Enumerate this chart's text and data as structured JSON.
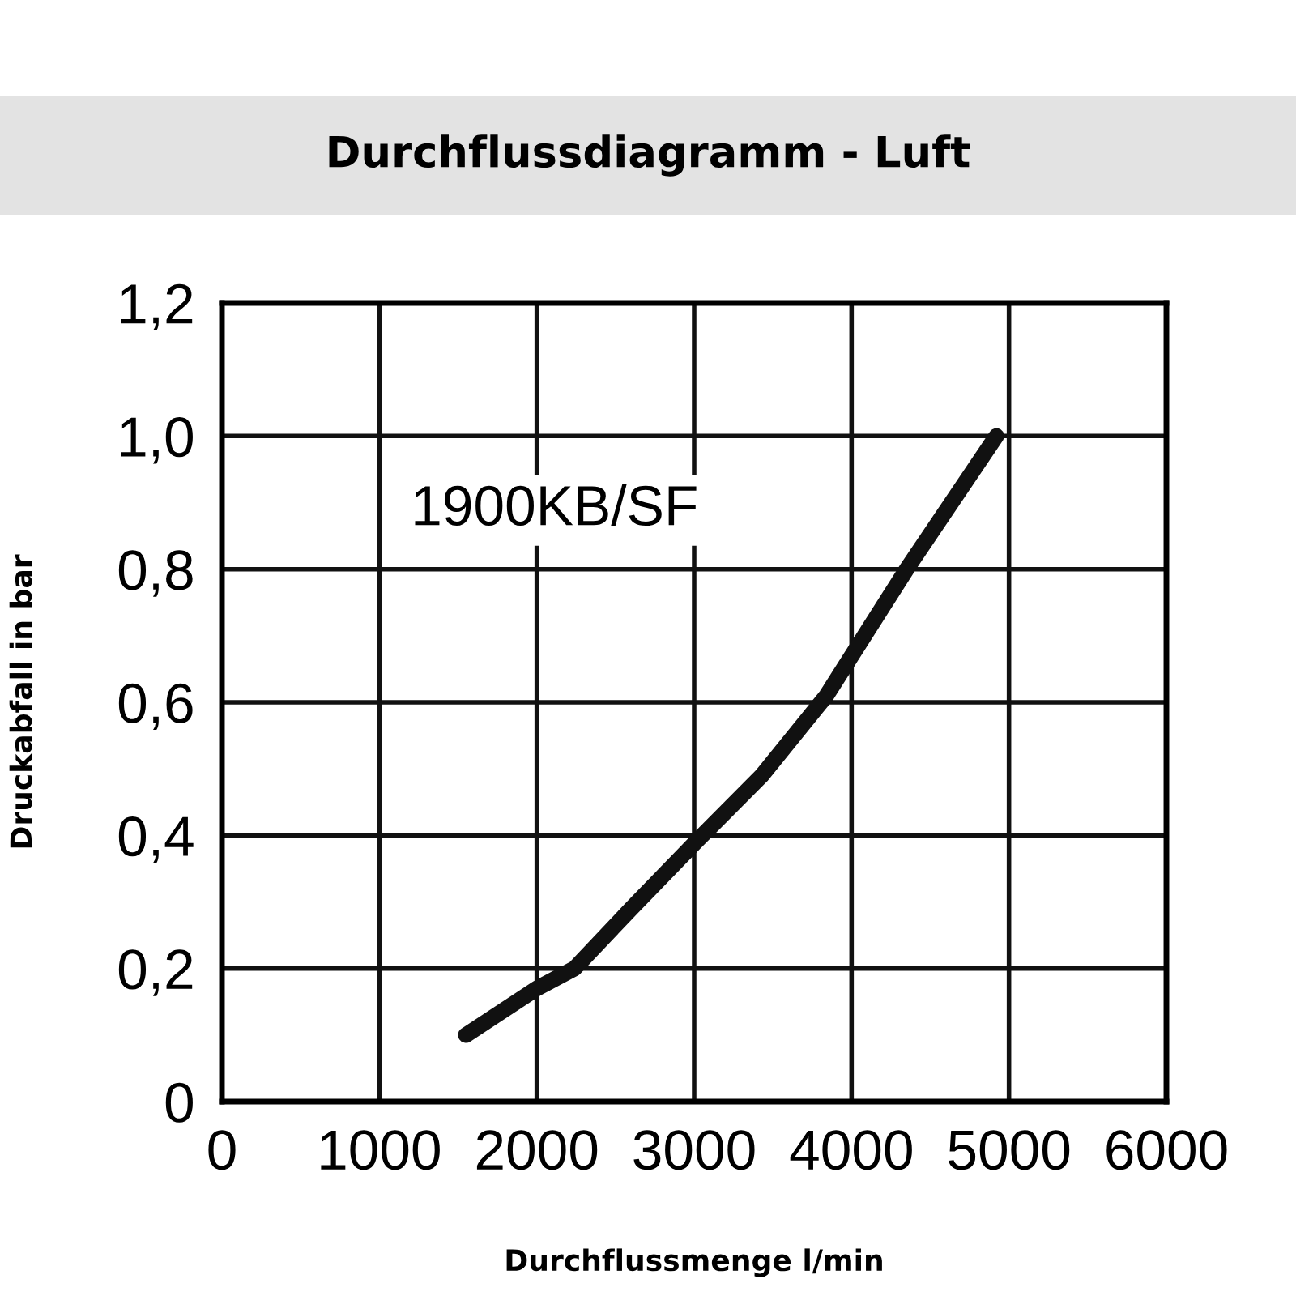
{
  "chart_data": {
    "type": "line",
    "title": "Durchflussdiagramm - Luft",
    "xlabel": "Durchflussmenge l/min",
    "ylabel": "Druckabfall in bar",
    "annotations": [
      "1900KB/SF"
    ],
    "series": [
      {
        "color": "#111111",
        "x": [
          1550,
          2000,
          2240,
          2600,
          3010,
          3430,
          3840,
          4350,
          4920
        ],
        "values": [
          0.1,
          0.17,
          0.2,
          0.29,
          0.39,
          0.49,
          0.61,
          0.8,
          1.0
        ]
      }
    ],
    "xlim": [
      0,
      6000
    ],
    "xticks": [
      0,
      1000,
      2000,
      3000,
      4000,
      5000,
      6000
    ],
    "ylim": [
      0,
      1.2
    ],
    "yticks": [
      {
        "value": 0,
        "label": "0"
      },
      {
        "value": 0.2,
        "label": "0,2"
      },
      {
        "value": 0.4,
        "label": "0,4"
      },
      {
        "value": 0.6,
        "label": "0,6"
      },
      {
        "value": 0.8,
        "label": "0,8"
      },
      {
        "value": 1.0,
        "label": "1,0"
      },
      {
        "value": 1.2,
        "label": "1,2"
      }
    ],
    "grid": true,
    "marker": "none",
    "line_style": "solid"
  }
}
